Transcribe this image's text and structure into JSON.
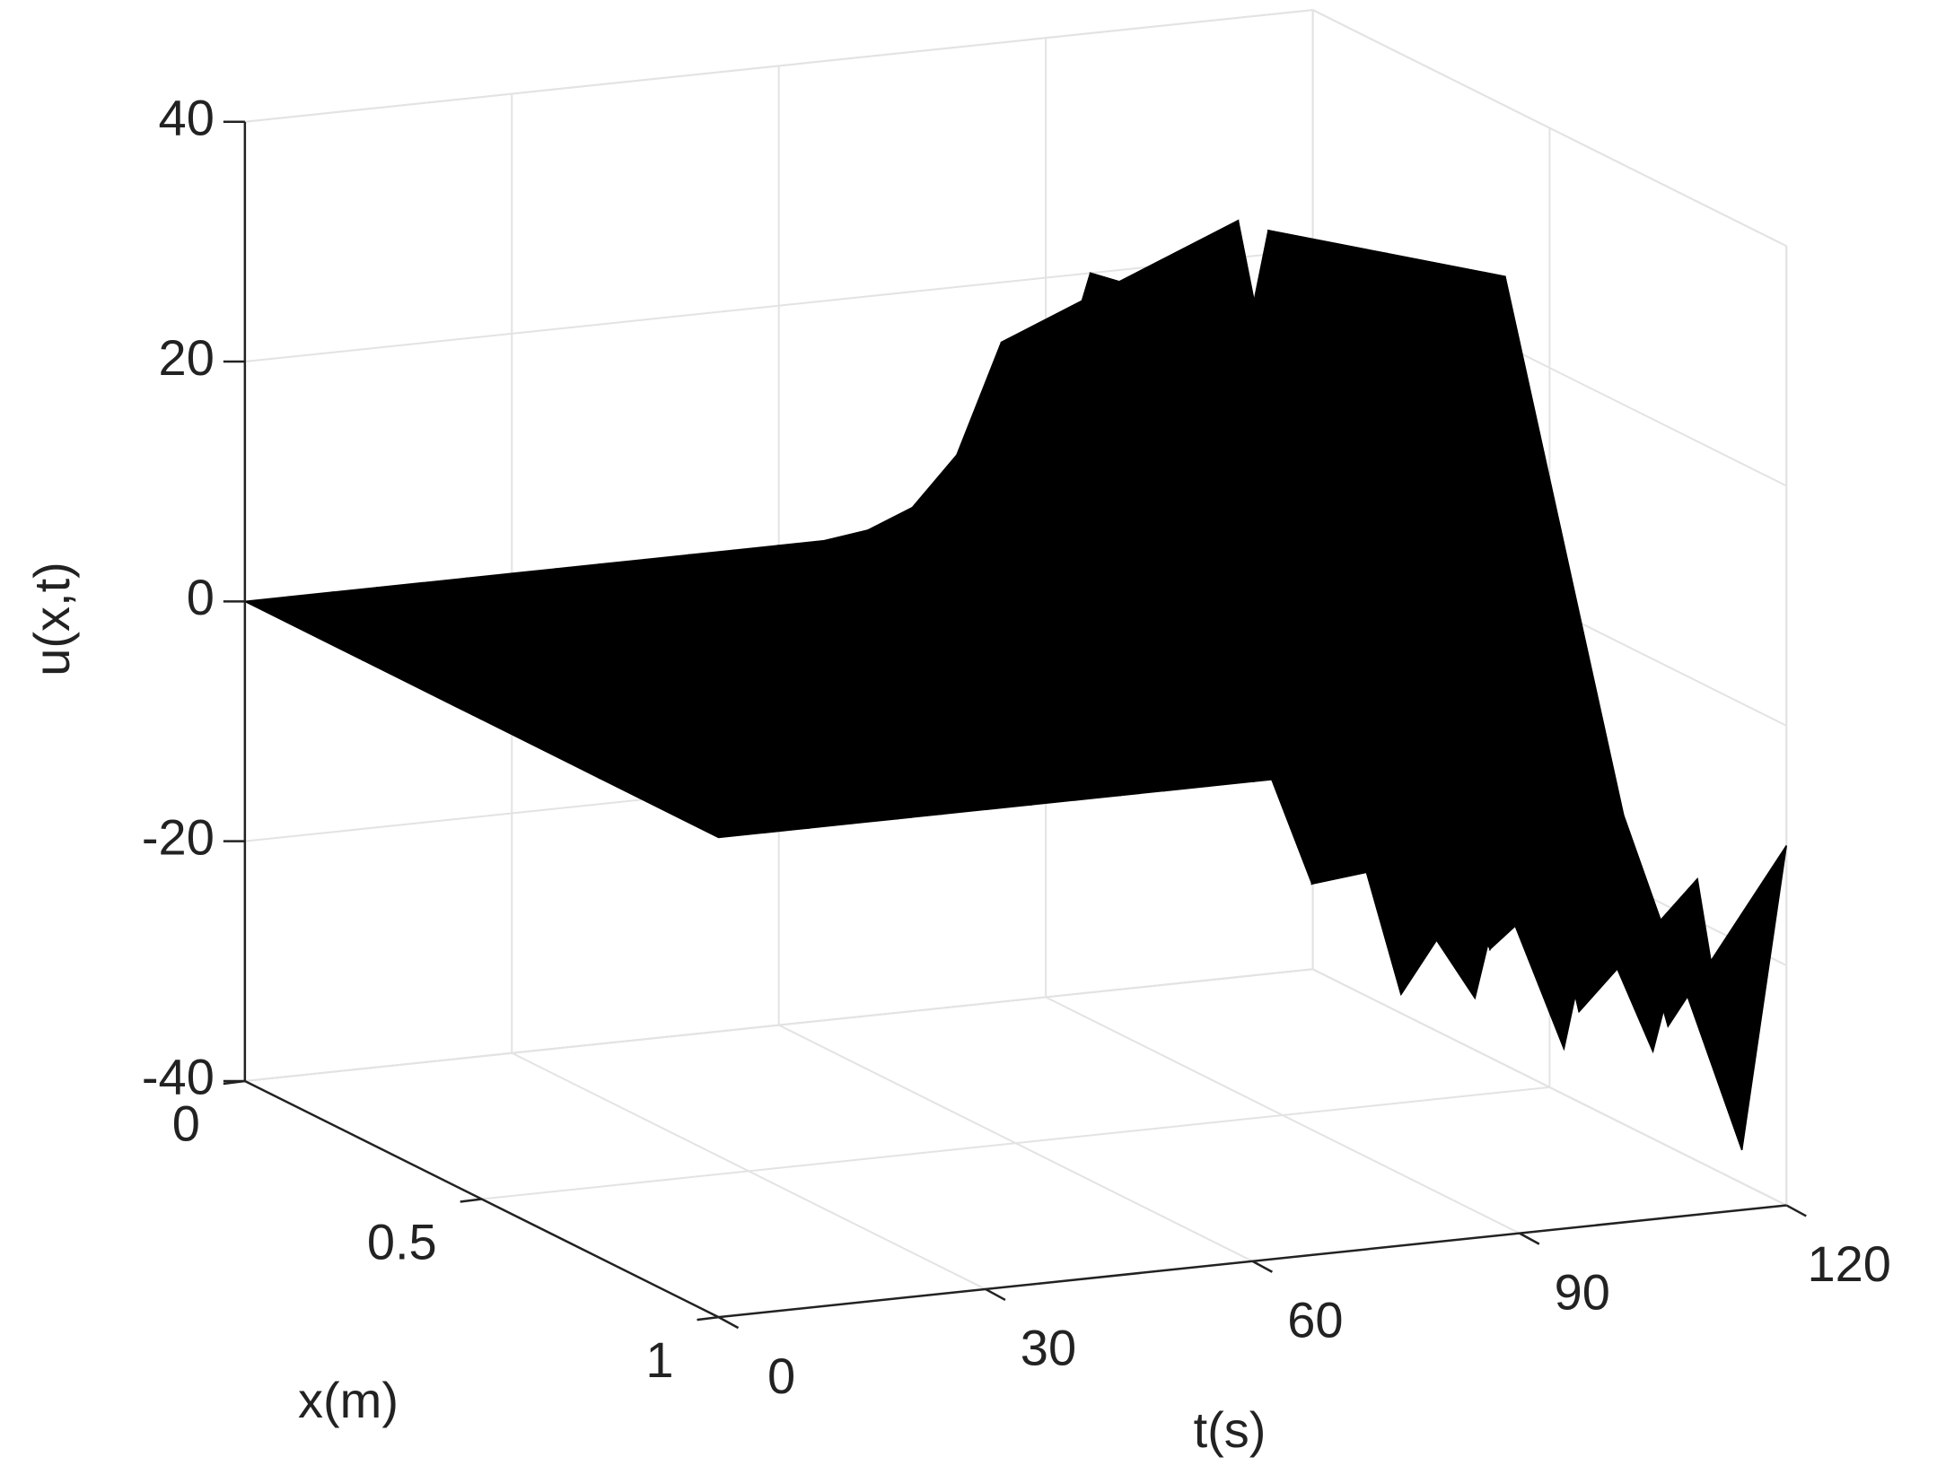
{
  "chart_data": {
    "type": "surface",
    "xlabel": "x(m)",
    "tlabel": "t(s)",
    "ulabel": "u(x,t)",
    "xlim": [
      0,
      1
    ],
    "xticks": [
      0,
      0.5,
      1
    ],
    "tlim": [
      0,
      120
    ],
    "tticks": [
      0,
      30,
      60,
      90,
      120
    ],
    "ulim": [
      -40,
      40
    ],
    "uticks": [
      -40,
      -20,
      0,
      20,
      40
    ],
    "grid": true,
    "color": "#000000",
    "x": [
      0,
      0.25,
      0.5,
      0.75,
      1
    ],
    "t": [
      0,
      5,
      10,
      15,
      20,
      25,
      30,
      35,
      40,
      45,
      50,
      55,
      60,
      65,
      70,
      75,
      80,
      85,
      90,
      95,
      100,
      105,
      110,
      115,
      120
    ],
    "z": [
      [
        0,
        0,
        0,
        0,
        0,
        0,
        0,
        0,
        0,
        0,
        0,
        0,
        0,
        0,
        0.5,
        2,
        6,
        15,
        8,
        20,
        5,
        18,
        4,
        22,
        10
      ],
      [
        0,
        0,
        0,
        0,
        0,
        0,
        0,
        0,
        0,
        0,
        0,
        0,
        0,
        0,
        1,
        4,
        -5,
        25,
        -8,
        22,
        -10,
        18,
        -12,
        25,
        -5
      ],
      [
        0,
        0,
        0,
        0,
        0,
        0,
        0,
        0,
        0,
        0,
        0,
        0,
        0,
        0,
        0.5,
        6,
        12,
        35,
        5,
        28,
        -5,
        20,
        10,
        28,
        0
      ],
      [
        0,
        0,
        0,
        0,
        0,
        0,
        0,
        0,
        0,
        0,
        0,
        0,
        0,
        0,
        -1,
        -5,
        -15,
        -10,
        -25,
        -5,
        -22,
        -8,
        -28,
        -12,
        -30
      ],
      [
        0,
        0,
        0,
        0,
        0,
        0,
        0,
        0,
        0,
        0,
        0,
        0,
        0,
        0,
        -0.5,
        -3,
        -8,
        -20,
        -5,
        -25,
        -8,
        -26,
        -12,
        -35,
        -10
      ]
    ]
  }
}
